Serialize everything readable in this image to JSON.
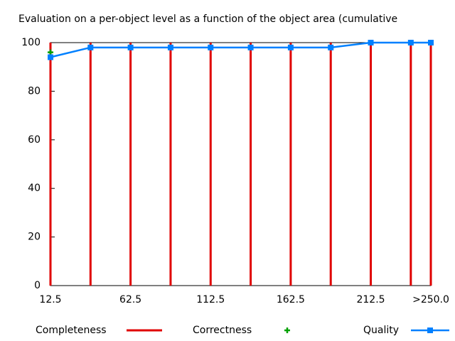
{
  "chart_data": {
    "type": "line",
    "title": "Evaluation on a per-object level as a function of the object area (cumulative",
    "x": [
      12.5,
      37.5,
      62.5,
      87.5,
      112.5,
      137.5,
      162.5,
      187.5,
      212.5,
      237.5,
      250
    ],
    "xlim": [
      12.5,
      250
    ],
    "xticks": [
      12.5,
      62.5,
      112.5,
      162.5,
      212.5,
      {
        "value": 250,
        "label": ">250.0"
      }
    ],
    "ylim": [
      0,
      100
    ],
    "yticks": [
      0,
      20,
      40,
      60,
      80,
      100
    ],
    "grid": false,
    "series": [
      {
        "name": "Completeness",
        "color": "#e00000",
        "style": "impulses",
        "values": [
          100,
          100,
          100,
          100,
          100,
          100,
          100,
          100,
          100,
          100,
          100
        ]
      },
      {
        "name": "Correctness",
        "color": "#00a000",
        "style": "points",
        "values": [
          96,
          98,
          98,
          98,
          98,
          98,
          98,
          98,
          100,
          100,
          100
        ]
      },
      {
        "name": "Quality",
        "color": "#0080ff",
        "style": "linespoints",
        "values": [
          94,
          98,
          98,
          98,
          98,
          98,
          98,
          98,
          100,
          100,
          100
        ]
      }
    ]
  }
}
